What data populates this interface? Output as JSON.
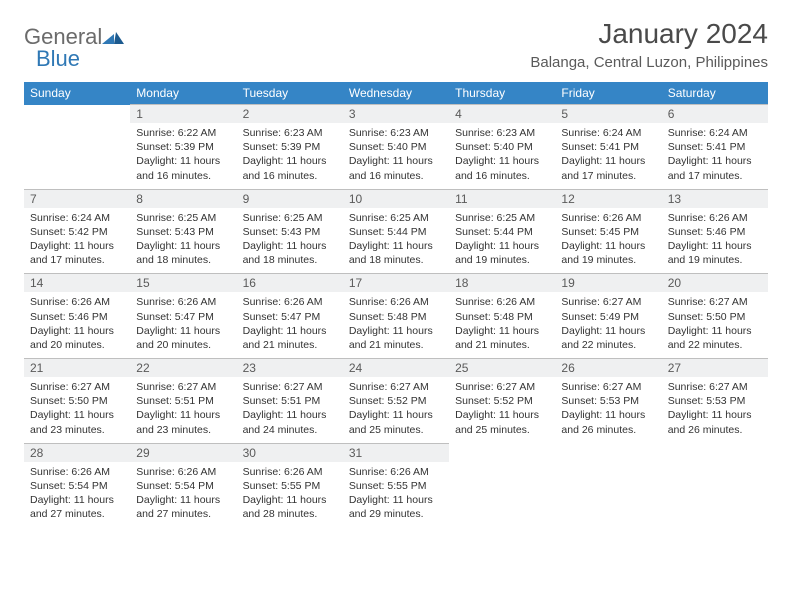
{
  "logo": {
    "text_general": "General",
    "text_blue": "Blue"
  },
  "title": "January 2024",
  "location": "Balanga, Central Luzon, Philippines",
  "colors": {
    "header_bg": "#3585c6",
    "header_text": "#ffffff",
    "daynum_bg": "#eff0f1",
    "text": "#333333",
    "logo_gray": "#6b6b6b",
    "logo_blue": "#2f78b5"
  },
  "day_headers": [
    "Sunday",
    "Monday",
    "Tuesday",
    "Wednesday",
    "Thursday",
    "Friday",
    "Saturday"
  ],
  "weeks": [
    [
      null,
      {
        "n": "1",
        "sr": "6:22 AM",
        "ss": "5:39 PM",
        "dl": "11 hours and 16 minutes."
      },
      {
        "n": "2",
        "sr": "6:23 AM",
        "ss": "5:39 PM",
        "dl": "11 hours and 16 minutes."
      },
      {
        "n": "3",
        "sr": "6:23 AM",
        "ss": "5:40 PM",
        "dl": "11 hours and 16 minutes."
      },
      {
        "n": "4",
        "sr": "6:23 AM",
        "ss": "5:40 PM",
        "dl": "11 hours and 16 minutes."
      },
      {
        "n": "5",
        "sr": "6:24 AM",
        "ss": "5:41 PM",
        "dl": "11 hours and 17 minutes."
      },
      {
        "n": "6",
        "sr": "6:24 AM",
        "ss": "5:41 PM",
        "dl": "11 hours and 17 minutes."
      }
    ],
    [
      {
        "n": "7",
        "sr": "6:24 AM",
        "ss": "5:42 PM",
        "dl": "11 hours and 17 minutes."
      },
      {
        "n": "8",
        "sr": "6:25 AM",
        "ss": "5:43 PM",
        "dl": "11 hours and 18 minutes."
      },
      {
        "n": "9",
        "sr": "6:25 AM",
        "ss": "5:43 PM",
        "dl": "11 hours and 18 minutes."
      },
      {
        "n": "10",
        "sr": "6:25 AM",
        "ss": "5:44 PM",
        "dl": "11 hours and 18 minutes."
      },
      {
        "n": "11",
        "sr": "6:25 AM",
        "ss": "5:44 PM",
        "dl": "11 hours and 19 minutes."
      },
      {
        "n": "12",
        "sr": "6:26 AM",
        "ss": "5:45 PM",
        "dl": "11 hours and 19 minutes."
      },
      {
        "n": "13",
        "sr": "6:26 AM",
        "ss": "5:46 PM",
        "dl": "11 hours and 19 minutes."
      }
    ],
    [
      {
        "n": "14",
        "sr": "6:26 AM",
        "ss": "5:46 PM",
        "dl": "11 hours and 20 minutes."
      },
      {
        "n": "15",
        "sr": "6:26 AM",
        "ss": "5:47 PM",
        "dl": "11 hours and 20 minutes."
      },
      {
        "n": "16",
        "sr": "6:26 AM",
        "ss": "5:47 PM",
        "dl": "11 hours and 21 minutes."
      },
      {
        "n": "17",
        "sr": "6:26 AM",
        "ss": "5:48 PM",
        "dl": "11 hours and 21 minutes."
      },
      {
        "n": "18",
        "sr": "6:26 AM",
        "ss": "5:48 PM",
        "dl": "11 hours and 21 minutes."
      },
      {
        "n": "19",
        "sr": "6:27 AM",
        "ss": "5:49 PM",
        "dl": "11 hours and 22 minutes."
      },
      {
        "n": "20",
        "sr": "6:27 AM",
        "ss": "5:50 PM",
        "dl": "11 hours and 22 minutes."
      }
    ],
    [
      {
        "n": "21",
        "sr": "6:27 AM",
        "ss": "5:50 PM",
        "dl": "11 hours and 23 minutes."
      },
      {
        "n": "22",
        "sr": "6:27 AM",
        "ss": "5:51 PM",
        "dl": "11 hours and 23 minutes."
      },
      {
        "n": "23",
        "sr": "6:27 AM",
        "ss": "5:51 PM",
        "dl": "11 hours and 24 minutes."
      },
      {
        "n": "24",
        "sr": "6:27 AM",
        "ss": "5:52 PM",
        "dl": "11 hours and 25 minutes."
      },
      {
        "n": "25",
        "sr": "6:27 AM",
        "ss": "5:52 PM",
        "dl": "11 hours and 25 minutes."
      },
      {
        "n": "26",
        "sr": "6:27 AM",
        "ss": "5:53 PM",
        "dl": "11 hours and 26 minutes."
      },
      {
        "n": "27",
        "sr": "6:27 AM",
        "ss": "5:53 PM",
        "dl": "11 hours and 26 minutes."
      }
    ],
    [
      {
        "n": "28",
        "sr": "6:26 AM",
        "ss": "5:54 PM",
        "dl": "11 hours and 27 minutes."
      },
      {
        "n": "29",
        "sr": "6:26 AM",
        "ss": "5:54 PM",
        "dl": "11 hours and 27 minutes."
      },
      {
        "n": "30",
        "sr": "6:26 AM",
        "ss": "5:55 PM",
        "dl": "11 hours and 28 minutes."
      },
      {
        "n": "31",
        "sr": "6:26 AM",
        "ss": "5:55 PM",
        "dl": "11 hours and 29 minutes."
      },
      null,
      null,
      null
    ]
  ],
  "labels": {
    "sunrise": "Sunrise:",
    "sunset": "Sunset:",
    "daylight": "Daylight:"
  }
}
